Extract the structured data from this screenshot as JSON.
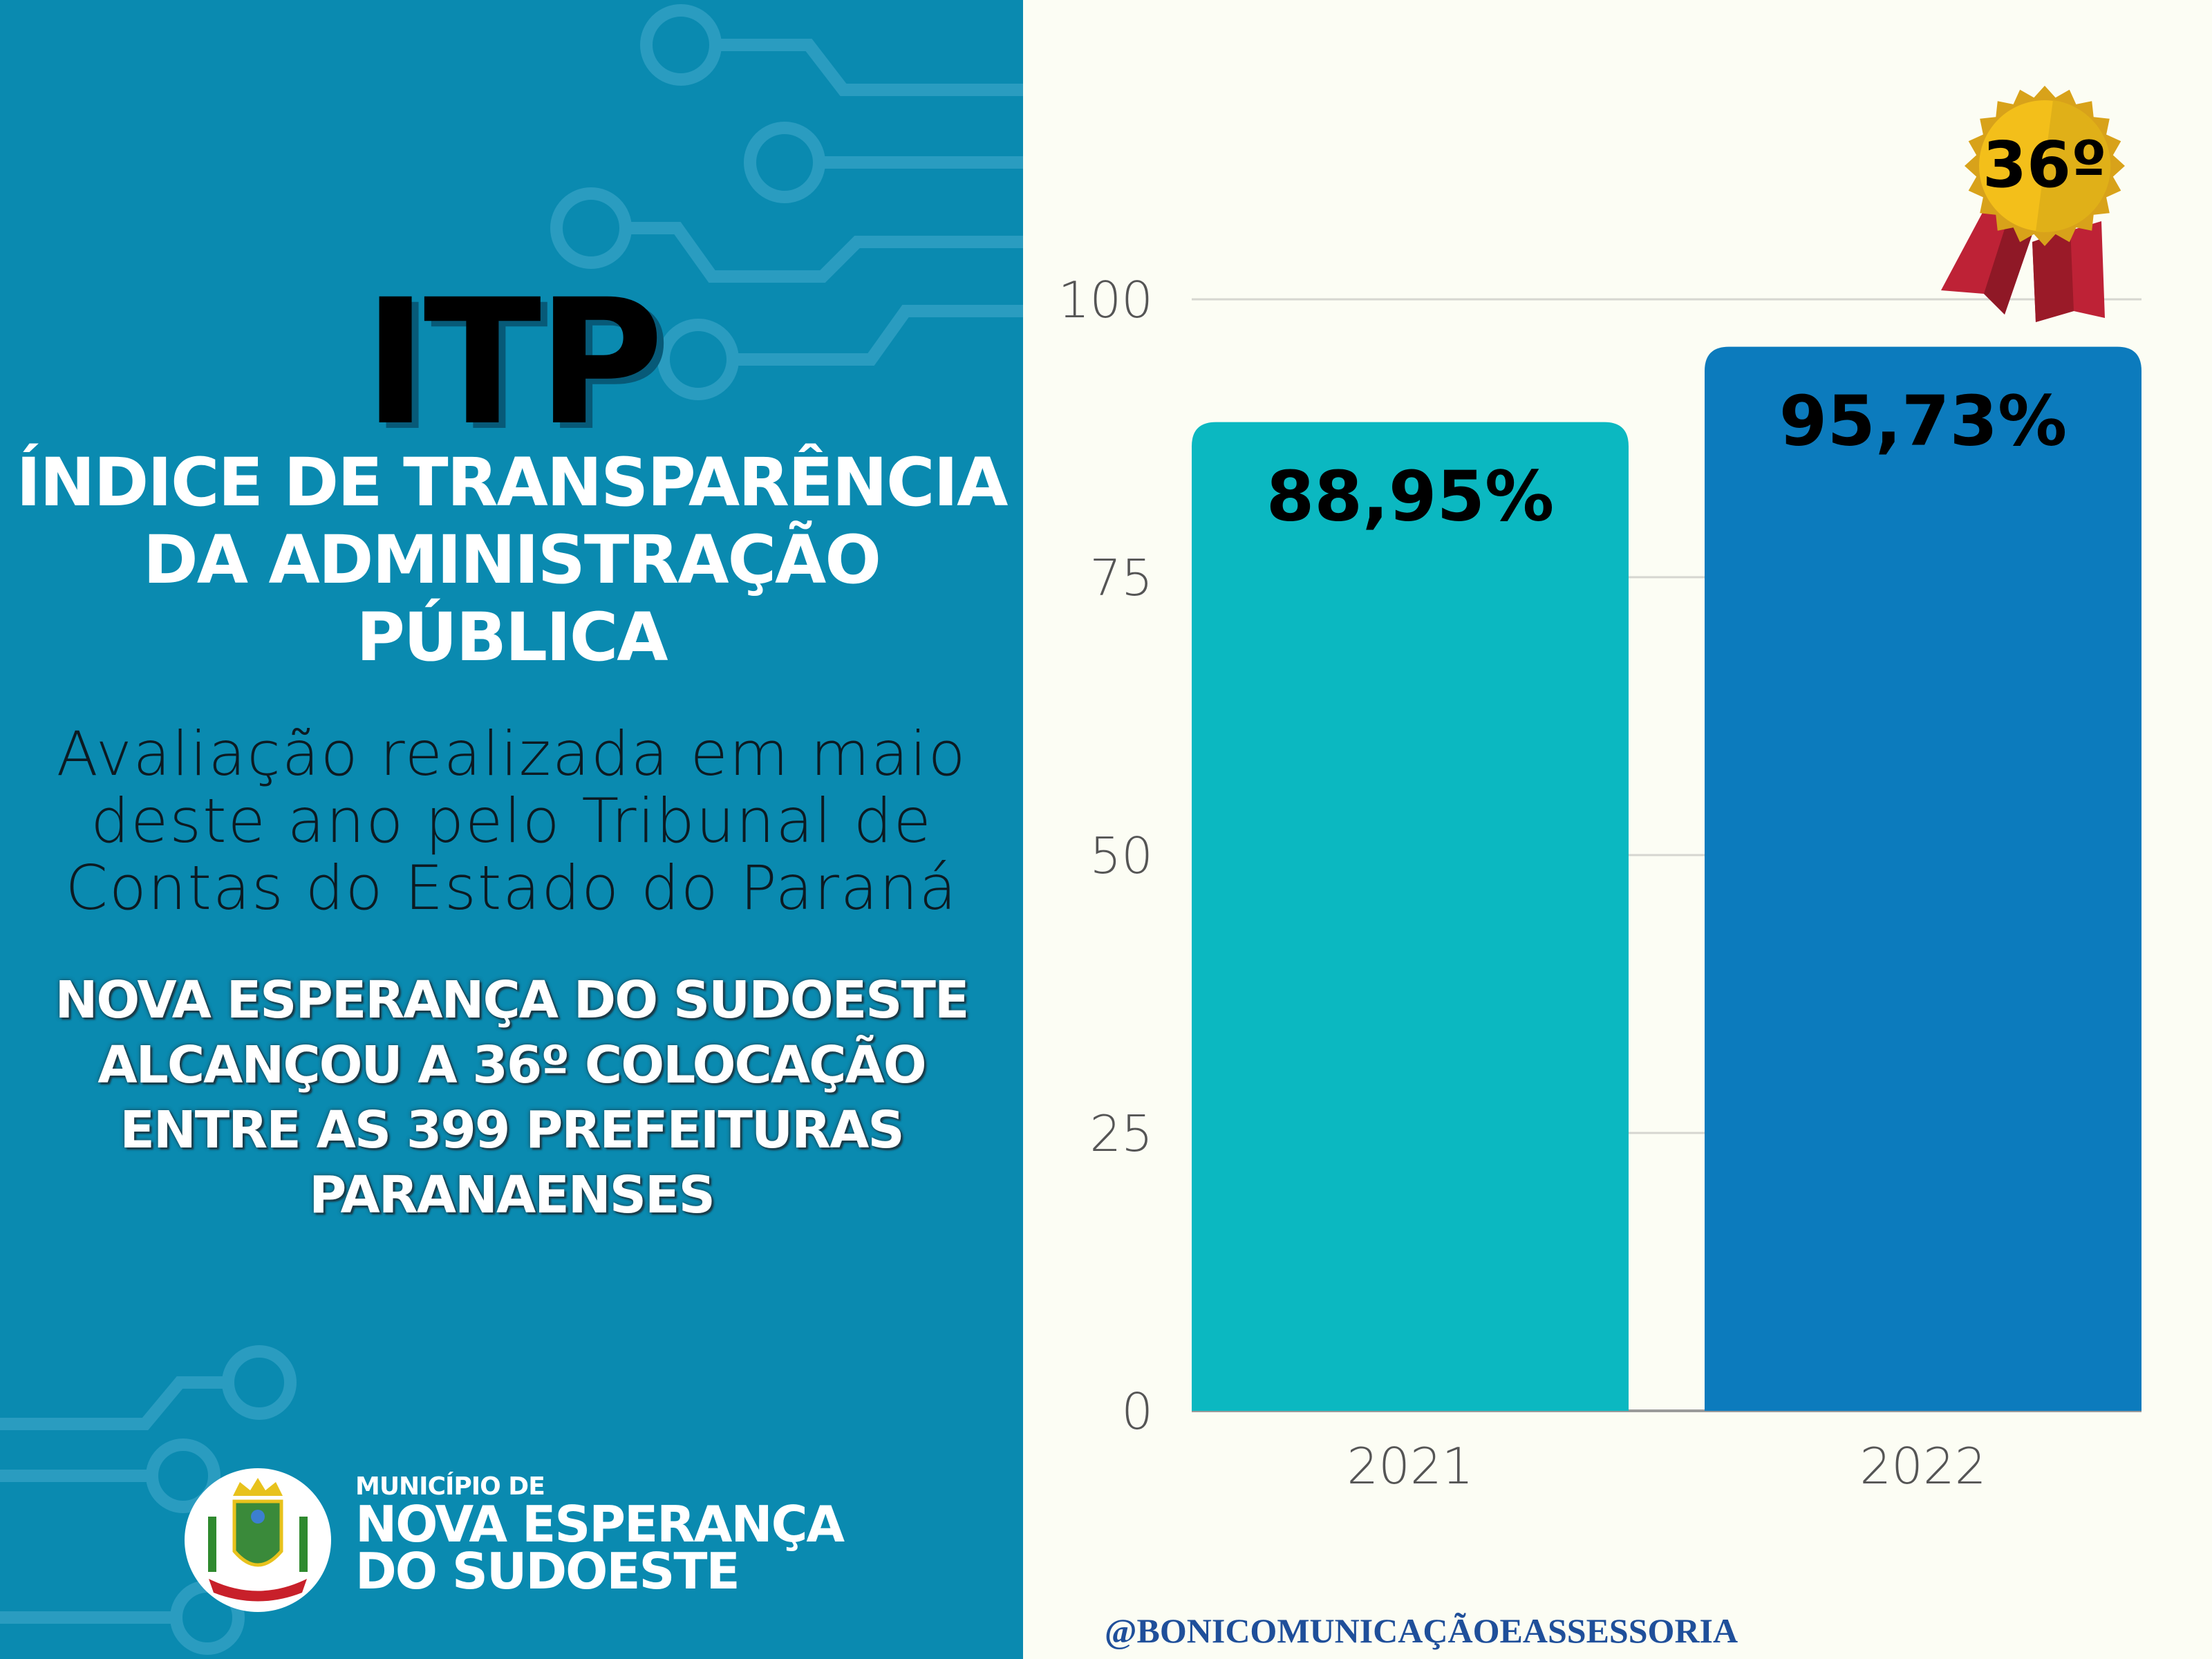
{
  "left_panel": {
    "title": "ITP",
    "subtitle_lines": [
      "ÍNDICE DE TRANSPARÊNCIA",
      "DA ADMINISTRAÇÃO",
      "PÚBLICA"
    ],
    "description_lines": [
      "Avaliação realizada em maio",
      "deste ano pelo Tribunal de",
      "Contas do Estado do Paraná"
    ],
    "highlight_lines": [
      "NOVA ESPERANÇA DO SUDOESTE",
      "ALCANÇOU A 36º COLOCAÇÃO",
      "ENTRE AS 399 PREFEITURAS",
      "PARANAENSES"
    ],
    "logo": {
      "pre": "MUNICÍPIO DE",
      "line1": "NOVA ESPERANÇA",
      "line2": "DO SUDOESTE"
    }
  },
  "badge": {
    "label": "36º"
  },
  "footer": {
    "handle": "@BONICOMUNICAÇÃOEASSESSORIA"
  },
  "colors": {
    "panel": "#0a8ab0",
    "bar_2021": "#0bb8c1",
    "bar_2022": "#0c7bbd",
    "footer": "#1f4f9a"
  },
  "chart_data": {
    "type": "bar",
    "categories": [
      "2021",
      "2022"
    ],
    "values": [
      88.95,
      95.73
    ],
    "data_labels": [
      "88,95%",
      "95,73%"
    ],
    "yticks": [
      0,
      25,
      50,
      75,
      100
    ],
    "ylim": [
      0,
      100
    ],
    "grid": true,
    "title": "",
    "xlabel": "",
    "ylabel": ""
  }
}
